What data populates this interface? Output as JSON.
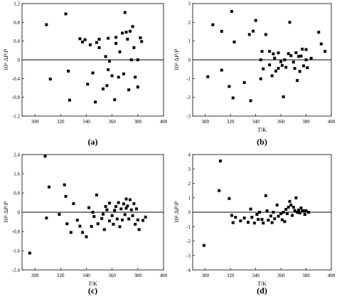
{
  "chart_data": [
    {
      "type": "scatter",
      "panel_label": "(a)",
      "xlabel": "",
      "ylabel": "10²·ΔP/P",
      "xlim": [
        290,
        400
      ],
      "ylim": [
        -1.2,
        1.2
      ],
      "xticks": [
        300,
        320,
        340,
        360,
        380,
        400
      ],
      "yticks": [
        -1.2,
        -0.8,
        -0.4,
        0,
        0.4,
        0.8,
        1.2
      ],
      "xtick_labels": [
        "300",
        "320",
        "340",
        "360",
        "380",
        "400"
      ],
      "ytick_labels": [
        "-1.2",
        "-0.8",
        "-0.4",
        "0",
        "0.4",
        "0.8",
        "1.2"
      ],
      "zero_line": true,
      "points": [
        [
          309,
          0.75
        ],
        [
          312,
          -0.41
        ],
        [
          324,
          0.98
        ],
        [
          326,
          -0.24
        ],
        [
          327,
          -0.86
        ],
        [
          335,
          0.45
        ],
        [
          337,
          0.38
        ],
        [
          339,
          0.43
        ],
        [
          341,
          -0.52
        ],
        [
          343,
          0.32
        ],
        [
          345,
          -0.28
        ],
        [
          347,
          -0.9
        ],
        [
          348,
          0.37
        ],
        [
          350,
          0.44
        ],
        [
          350,
          0.26
        ],
        [
          353,
          -0.62
        ],
        [
          355,
          0.07
        ],
        [
          356,
          -0.55
        ],
        [
          357,
          0.46
        ],
        [
          357,
          -0.21
        ],
        [
          358,
          -0.03
        ],
        [
          360,
          -0.34
        ],
        [
          362,
          -0.85
        ],
        [
          363,
          0.48
        ],
        [
          363,
          0.35
        ],
        [
          365,
          -0.37
        ],
        [
          366,
          0.17
        ],
        [
          368,
          0.57
        ],
        [
          369,
          -0.3
        ],
        [
          370,
          1.01
        ],
        [
          371,
          0.59
        ],
        [
          372,
          0.44
        ],
        [
          373,
          -0.64
        ],
        [
          374,
          0.61
        ],
        [
          375,
          0.0
        ],
        [
          376,
          0.71
        ],
        [
          377,
          0.26
        ],
        [
          378,
          -0.37
        ],
        [
          380,
          -0.58
        ],
        [
          380,
          0.0
        ],
        [
          382,
          0.47
        ],
        [
          383,
          0.39
        ]
      ]
    },
    {
      "type": "scatter",
      "panel_label": "(b)",
      "xlabel": "T/K",
      "ylabel": "10²·ΔP/P",
      "xlim": [
        290,
        400
      ],
      "ylim": [
        -3,
        3
      ],
      "xticks": [
        300,
        320,
        340,
        360,
        380,
        400
      ],
      "yticks": [
        -3,
        -2,
        -1,
        0,
        1,
        2,
        3
      ],
      "xtick_labels": [
        "300",
        "320",
        "340",
        "360",
        "380",
        "400"
      ],
      "ytick_labels": [
        "-3",
        "-2",
        "-1",
        "0",
        "1",
        "2",
        "3"
      ],
      "zero_line": true,
      "points": [
        [
          302,
          -0.9
        ],
        [
          306,
          1.87
        ],
        [
          313,
          1.52
        ],
        [
          313,
          -0.55
        ],
        [
          319,
          -1.42
        ],
        [
          321,
          2.58
        ],
        [
          322,
          -2.03
        ],
        [
          323,
          0.95
        ],
        [
          331,
          -1.21
        ],
        [
          335,
          1.35
        ],
        [
          336,
          -2.18
        ],
        [
          338,
          1.53
        ],
        [
          340,
          2.1
        ],
        [
          344,
          0.0
        ],
        [
          344,
          -1.01
        ],
        [
          345,
          0.45
        ],
        [
          346,
          -0.48
        ],
        [
          348,
          1.35
        ],
        [
          351,
          0.45
        ],
        [
          351,
          -0.27
        ],
        [
          353,
          -0.85
        ],
        [
          354,
          0.32
        ],
        [
          355,
          0.09
        ],
        [
          356,
          -0.6
        ],
        [
          358,
          0.37
        ],
        [
          358,
          -0.45
        ],
        [
          360,
          -0.1
        ],
        [
          361,
          -0.3
        ],
        [
          362,
          -1.97
        ],
        [
          363,
          0.0
        ],
        [
          364,
          -0.4
        ],
        [
          366,
          0.33
        ],
        [
          367,
          2.0
        ],
        [
          368,
          0.22
        ],
        [
          370,
          -0.12
        ],
        [
          371,
          -0.46
        ],
        [
          372,
          0.38
        ],
        [
          373,
          -1.1
        ],
        [
          374,
          0.18
        ],
        [
          375,
          -0.62
        ],
        [
          376,
          0.2
        ],
        [
          377,
          0.57
        ],
        [
          378,
          -0.32
        ],
        [
          380,
          0.55
        ],
        [
          380,
          0.0
        ],
        [
          381,
          -0.42
        ],
        [
          384,
          0.08
        ],
        [
          390,
          1.47
        ],
        [
          392,
          0.85
        ],
        [
          395,
          0.45
        ]
      ]
    },
    {
      "type": "scatter",
      "panel_label": "(c)",
      "xlabel": "T/K",
      "ylabel": "10²·ΔP/P",
      "xlim": [
        290,
        400
      ],
      "ylim": [
        -2.4,
        2.4
      ],
      "xticks": [
        300,
        320,
        340,
        360,
        380,
        400
      ],
      "yticks": [
        -2.4,
        -1.6,
        -0.8,
        0,
        0.8,
        1.6,
        2.4
      ],
      "xtick_labels": [
        "300",
        "320",
        "340",
        "360",
        "380",
        "400"
      ],
      "ytick_labels": [
        "-2.4",
        "-1.6",
        "-0.8",
        "0",
        "0.8",
        "1.6",
        "2.4"
      ],
      "zero_line": true,
      "points": [
        [
          296,
          -1.7
        ],
        [
          308,
          2.33
        ],
        [
          309,
          -0.24
        ],
        [
          311,
          1.05
        ],
        [
          319,
          -0.09
        ],
        [
          323,
          1.14
        ],
        [
          324,
          0.66
        ],
        [
          325,
          -0.48
        ],
        [
          328,
          -0.84
        ],
        [
          330,
          0.36
        ],
        [
          333,
          -0.33
        ],
        [
          335,
          -0.58
        ],
        [
          337,
          -0.84
        ],
        [
          340,
          -1.02
        ],
        [
          342,
          0.19
        ],
        [
          344,
          -0.59
        ],
        [
          345,
          0.0
        ],
        [
          346,
          -0.18
        ],
        [
          348,
          0.72
        ],
        [
          349,
          -0.48
        ],
        [
          352,
          -0.26
        ],
        [
          353,
          -0.08
        ],
        [
          354,
          -0.72
        ],
        [
          355,
          0.24
        ],
        [
          356,
          0.1
        ],
        [
          358,
          0.38
        ],
        [
          358,
          -0.36
        ],
        [
          360,
          -0.14
        ],
        [
          361,
          -0.5
        ],
        [
          362,
          0.08
        ],
        [
          363,
          0.24
        ],
        [
          364,
          -0.28
        ],
        [
          365,
          0.4
        ],
        [
          366,
          -0.6
        ],
        [
          367,
          0.14
        ],
        [
          368,
          -0.32
        ],
        [
          369,
          0.35
        ],
        [
          370,
          -0.1
        ],
        [
          371,
          0.55
        ],
        [
          371,
          0.17
        ],
        [
          372,
          0.26
        ],
        [
          373,
          -0.28
        ],
        [
          374,
          0.52
        ],
        [
          375,
          0.1
        ],
        [
          376,
          -0.14
        ],
        [
          377,
          0.36
        ],
        [
          378,
          -0.5
        ],
        [
          379,
          0.14
        ],
        [
          380,
          -0.32
        ],
        [
          381,
          -0.72
        ],
        [
          384,
          -0.34
        ],
        [
          386,
          -0.2
        ]
      ]
    },
    {
      "type": "scatter",
      "panel_label": "(d)",
      "xlabel": "T/K",
      "ylabel": "10²·ΔP/P",
      "xlim": [
        290,
        400
      ],
      "ylim": [
        -4,
        4
      ],
      "xticks": [
        300,
        320,
        340,
        360,
        380,
        400
      ],
      "yticks": [
        -4,
        -3,
        -2,
        -1,
        0,
        1,
        2,
        3,
        4
      ],
      "xtick_labels": [
        "300",
        "320",
        "340",
        "360",
        "380",
        "400"
      ],
      "ytick_labels": [
        "-4",
        "-3",
        "-2",
        "-1",
        "0",
        "1",
        "2",
        "3",
        "4"
      ],
      "zero_line": true,
      "points": [
        [
          299,
          -2.3
        ],
        [
          311,
          1.5
        ],
        [
          312,
          3.55
        ],
        [
          319,
          0.95
        ],
        [
          321,
          -0.22
        ],
        [
          322,
          -0.72
        ],
        [
          324,
          -0.35
        ],
        [
          328,
          -0.6
        ],
        [
          331,
          -0.4
        ],
        [
          334,
          -0.7
        ],
        [
          336,
          0.22
        ],
        [
          337,
          -0.35
        ],
        [
          339,
          -0.75
        ],
        [
          341,
          -0.15
        ],
        [
          342,
          -0.5
        ],
        [
          343,
          0.0
        ],
        [
          345,
          -0.5
        ],
        [
          346,
          -0.75
        ],
        [
          348,
          1.15
        ],
        [
          349,
          0.1
        ],
        [
          350,
          -0.55
        ],
        [
          352,
          -0.26
        ],
        [
          353,
          -0.72
        ],
        [
          354,
          0.0
        ],
        [
          355,
          -0.45
        ],
        [
          357,
          0.5
        ],
        [
          358,
          -0.28
        ],
        [
          360,
          -0.1
        ],
        [
          361,
          -0.52
        ],
        [
          362,
          0.0
        ],
        [
          363,
          -0.65
        ],
        [
          364,
          0.2
        ],
        [
          365,
          -0.1
        ],
        [
          366,
          0.35
        ],
        [
          367,
          0.75
        ],
        [
          368,
          0.5
        ],
        [
          369,
          -0.22
        ],
        [
          370,
          0.35
        ],
        [
          371,
          0.12
        ],
        [
          372,
          1.0
        ],
        [
          373,
          0.0
        ],
        [
          374,
          0.15
        ],
        [
          375,
          -0.05
        ],
        [
          376,
          0.3
        ],
        [
          377,
          0.1
        ],
        [
          378,
          0.1
        ],
        [
          379,
          -0.15
        ],
        [
          380,
          0.1
        ],
        [
          382,
          0.0
        ]
      ]
    }
  ]
}
